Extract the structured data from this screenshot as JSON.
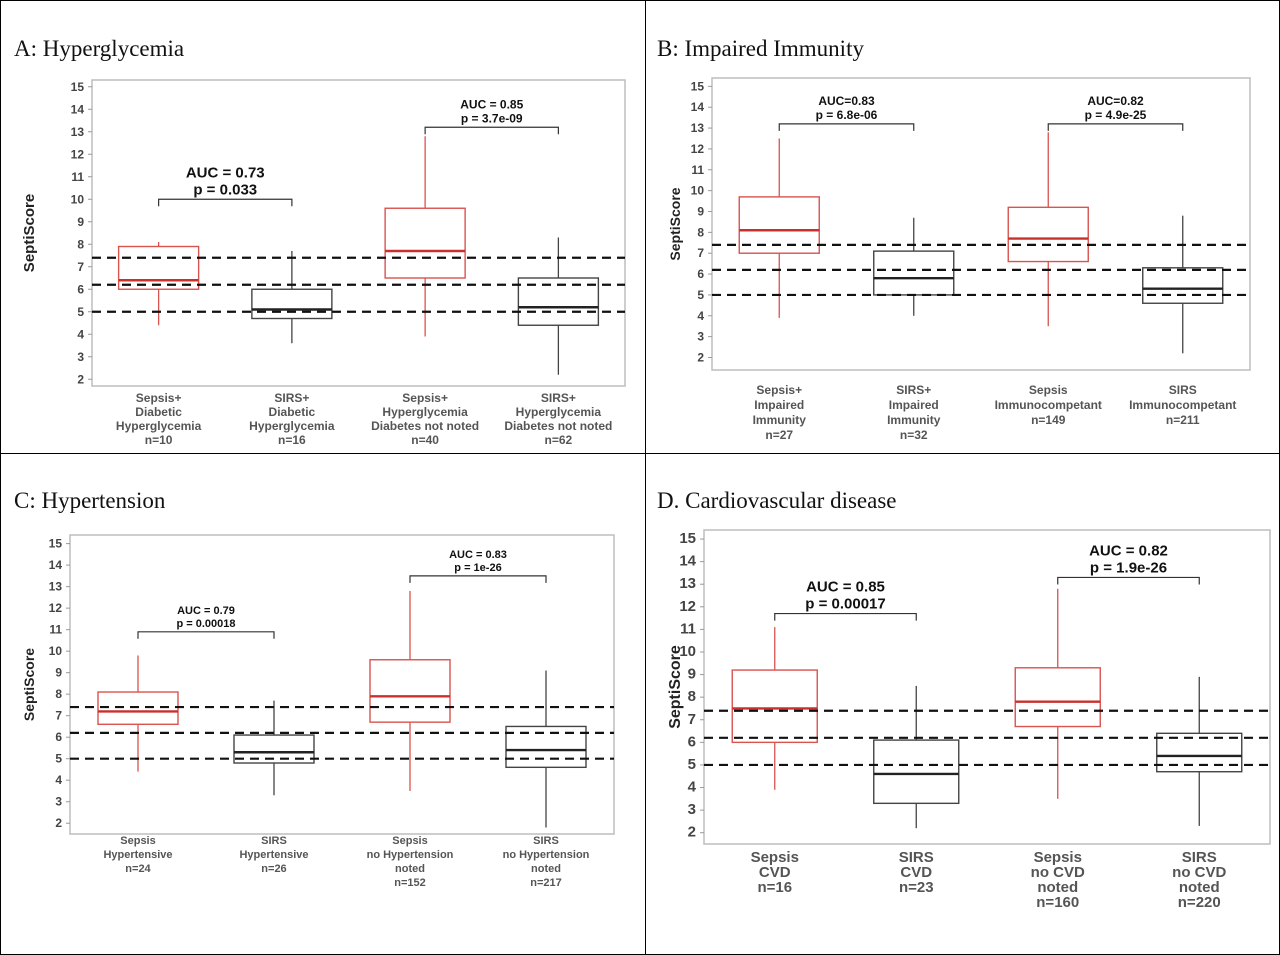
{
  "panels": [
    {
      "id": "A",
      "title": "A: Hyperglycemia",
      "chart_data": {
        "type": "box",
        "ylabel": "SeptiScore",
        "yticks": [
          2,
          3,
          4,
          5,
          6,
          7,
          8,
          9,
          10,
          11,
          12,
          13,
          14,
          15
        ],
        "ylim": [
          1.7,
          15.3
        ],
        "reference_lines": [
          5.0,
          6.2,
          7.4
        ],
        "groups": [
          {
            "label_lines": [
              "Sepsis+",
              "Diabetic",
              "Hyperglycemia",
              "n=10"
            ],
            "color": "#d9534f",
            "median_color": "#c9302c",
            "whisker_low": 4.4,
            "q1": 6.0,
            "median": 6.4,
            "q3": 7.9,
            "whisker_high": 8.1
          },
          {
            "label_lines": [
              "SIRS+",
              "Diabetic",
              "Hyperglycemia",
              "n=16"
            ],
            "color": "#444444",
            "median_color": "#222222",
            "whisker_low": 3.6,
            "q1": 4.7,
            "median": 5.1,
            "q3": 6.0,
            "whisker_high": 7.7
          },
          {
            "label_lines": [
              "Sepsis+",
              "Hyperglycemia",
              "Diabetes not noted",
              "n=40"
            ],
            "color": "#d9534f",
            "median_color": "#c9302c",
            "whisker_low": 3.9,
            "q1": 6.5,
            "median": 7.7,
            "q3": 9.6,
            "whisker_high": 12.8
          },
          {
            "label_lines": [
              "SIRS+",
              "Hyperglycemia",
              "Diabetes not noted",
              "n=62"
            ],
            "color": "#444444",
            "median_color": "#222222",
            "whisker_low": 2.2,
            "q1": 4.4,
            "median": 5.2,
            "q3": 6.5,
            "whisker_high": 8.3
          }
        ],
        "comparisons": [
          {
            "from": 0,
            "to": 1,
            "y": 10.0,
            "auc": "AUC = 0.73",
            "p": "p = 0.033",
            "size": 15
          },
          {
            "from": 2,
            "to": 3,
            "y": 13.2,
            "auc": "AUC = 0.85",
            "p": "p = 3.7e-09",
            "size": 12
          }
        ]
      }
    },
    {
      "id": "B",
      "title": "B: Impaired Immunity",
      "chart_data": {
        "type": "box",
        "ylabel": "SeptiScore",
        "yticks": [
          2,
          3,
          4,
          5,
          6,
          7,
          8,
          9,
          10,
          11,
          12,
          13,
          14,
          15
        ],
        "ylim": [
          1.4,
          15.4
        ],
        "reference_lines": [
          5.0,
          6.2,
          7.4
        ],
        "groups": [
          {
            "label_lines": [
              "Sepsis+",
              "Impaired",
              "Immunity",
              "n=27"
            ],
            "color": "#d9534f",
            "median_color": "#c9302c",
            "whisker_low": 3.9,
            "q1": 7.0,
            "median": 8.1,
            "q3": 9.7,
            "whisker_high": 12.5
          },
          {
            "label_lines": [
              "SIRS+",
              "Impaired",
              "Immunity",
              "n=32"
            ],
            "color": "#444444",
            "median_color": "#222222",
            "whisker_low": 4.0,
            "q1": 5.0,
            "median": 5.8,
            "q3": 7.1,
            "whisker_high": 8.7
          },
          {
            "label_lines": [
              "Sepsis",
              "Immunocompetant",
              "n=149"
            ],
            "color": "#d9534f",
            "median_color": "#c9302c",
            "whisker_low": 3.5,
            "q1": 6.6,
            "median": 7.7,
            "q3": 9.2,
            "whisker_high": 12.8
          },
          {
            "label_lines": [
              "SIRS",
              "Immunocompetant",
              "n=211"
            ],
            "color": "#444444",
            "median_color": "#222222",
            "whisker_low": 2.2,
            "q1": 4.6,
            "median": 5.3,
            "q3": 6.3,
            "whisker_high": 8.8
          }
        ],
        "comparisons": [
          {
            "from": 0,
            "to": 1,
            "y": 13.2,
            "auc": "AUC=0.83",
            "p": "p = 6.8e-06",
            "size": 12
          },
          {
            "from": 2,
            "to": 3,
            "y": 13.2,
            "auc": "AUC=0.82",
            "p": "p = 4.9e-25",
            "size": 12
          }
        ]
      }
    },
    {
      "id": "C",
      "title": "C: Hypertension",
      "chart_data": {
        "type": "box",
        "ylabel": "SeptiScore",
        "yticks": [
          2,
          3,
          4,
          5,
          6,
          7,
          8,
          9,
          10,
          11,
          12,
          13,
          14,
          15
        ],
        "ylim": [
          1.5,
          15.4
        ],
        "reference_lines": [
          5.0,
          6.2,
          7.4
        ],
        "groups": [
          {
            "label_lines": [
              "Sepsis",
              "Hypertensive",
              "n=24"
            ],
            "color": "#d9534f",
            "median_color": "#c9302c",
            "whisker_low": 4.4,
            "q1": 6.6,
            "median": 7.2,
            "q3": 8.1,
            "whisker_high": 9.8
          },
          {
            "label_lines": [
              "SIRS",
              "Hypertensive",
              "n=26"
            ],
            "color": "#444444",
            "median_color": "#222222",
            "whisker_low": 3.3,
            "q1": 4.8,
            "median": 5.3,
            "q3": 6.1,
            "whisker_high": 7.7
          },
          {
            "label_lines": [
              "Sepsis",
              "no Hypertension",
              "noted",
              "n=152"
            ],
            "color": "#d9534f",
            "median_color": "#c9302c",
            "whisker_low": 3.5,
            "q1": 6.7,
            "median": 7.9,
            "q3": 9.6,
            "whisker_high": 12.8
          },
          {
            "label_lines": [
              "SIRS",
              "no Hypertension",
              "noted",
              "n=217"
            ],
            "color": "#444444",
            "median_color": "#222222",
            "whisker_low": 1.8,
            "q1": 4.6,
            "median": 5.4,
            "q3": 6.5,
            "whisker_high": 9.1
          }
        ],
        "comparisons": [
          {
            "from": 0,
            "to": 1,
            "y": 10.9,
            "auc": "AUC = 0.79",
            "p": "p = 0.00018",
            "size": 11
          },
          {
            "from": 2,
            "to": 3,
            "y": 13.5,
            "auc": "AUC = 0.83",
            "p": "p = 1e-26",
            "size": 11
          }
        ]
      }
    },
    {
      "id": "D",
      "title": "D. Cardiovascular disease",
      "chart_data": {
        "type": "box",
        "ylabel": "SeptiScore",
        "yticks": [
          2,
          3,
          4,
          5,
          6,
          7,
          8,
          9,
          10,
          11,
          12,
          13,
          14,
          15
        ],
        "ylim": [
          1.5,
          15.4
        ],
        "reference_lines": [
          5.0,
          6.2,
          7.4
        ],
        "groups": [
          {
            "label_lines": [
              "Sepsis",
              "CVD",
              "n=16"
            ],
            "color": "#d9534f",
            "median_color": "#c9302c",
            "whisker_low": 3.9,
            "q1": 6.0,
            "median": 7.5,
            "q3": 9.2,
            "whisker_high": 11.1
          },
          {
            "label_lines": [
              "SIRS",
              "CVD",
              "n=23"
            ],
            "color": "#444444",
            "median_color": "#222222",
            "whisker_low": 2.2,
            "q1": 3.3,
            "median": 4.6,
            "q3": 6.1,
            "whisker_high": 8.5
          },
          {
            "label_lines": [
              "Sepsis",
              "no CVD",
              "noted",
              "n=160"
            ],
            "color": "#d9534f",
            "median_color": "#c9302c",
            "whisker_low": 3.5,
            "q1": 6.7,
            "median": 7.8,
            "q3": 9.3,
            "whisker_high": 12.8
          },
          {
            "label_lines": [
              "SIRS",
              "no CVD",
              "noted",
              "n=220"
            ],
            "color": "#444444",
            "median_color": "#222222",
            "whisker_low": 2.3,
            "q1": 4.7,
            "median": 5.4,
            "q3": 6.4,
            "whisker_high": 8.9
          }
        ],
        "comparisons": [
          {
            "from": 0,
            "to": 1,
            "y": 11.7,
            "auc": "AUC = 0.85",
            "p": "p = 0.00017",
            "size": 15
          },
          {
            "from": 2,
            "to": 3,
            "y": 13.3,
            "auc": "AUC = 0.82",
            "p": "p = 1.9e-26",
            "size": 15
          }
        ]
      }
    }
  ]
}
